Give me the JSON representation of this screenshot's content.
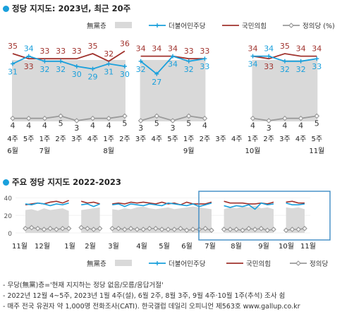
{
  "top_title": "정당 지지도: 2023년, 최근 20주",
  "bottom_title": "주요 정당 지지도 2022-2023",
  "legend": {
    "items": [
      {
        "label": "無黨층",
        "color": "#d9d9d9",
        "kind": "area"
      },
      {
        "label": "더불어민주당",
        "color": "#1aa0dc",
        "kind": "plus"
      },
      {
        "label": "국민의힘",
        "color": "#a0322d",
        "kind": "line"
      },
      {
        "label": "정의당 (%)",
        "color": "#9a9a9a",
        "kind": "diamond"
      }
    ],
    "bottom_items": [
      {
        "label": "無黨층",
        "color": "#d9d9d9",
        "kind": "area"
      },
      {
        "label": "더불어민주당",
        "color": "#1aa0dc",
        "kind": "plus"
      },
      {
        "label": "국민의힘",
        "color": "#a0322d",
        "kind": "line"
      },
      {
        "label": "정의당",
        "color": "#9a9a9a",
        "kind": "diamond"
      }
    ]
  },
  "notes": [
    "- 무당(無黨)층='현재 지지하는 정당 없음/모름/응답거절'",
    "- 2022년 12월 4~5주, 2023년 1월 4주(설), 6월 2주, 8월 3주, 9월 4주·10월 1주(추석) 조사 쉼",
    "- 매주 전국 유권자 약 1,000명 전화조사(CATI). 한국갤럽 데일리 오피니언 제563호 www.gallup.co.kr"
  ],
  "colors": {
    "dem": "#1aa0dc",
    "ppp": "#a0322d",
    "justice": "#9a9a9a",
    "nonparty": "#d9d9d9"
  },
  "chart_data": [
    {
      "type": "line",
      "title": "정당 지지도: 2023년, 최근 20주",
      "weeks": [
        "4주",
        "5주",
        "1주",
        "2주",
        "3주",
        "4주",
        "1주",
        "2주",
        "3주",
        "4주",
        "5주",
        "1주",
        "2주",
        "3주",
        "4주",
        "1주",
        "2주",
        "3주",
        "4주",
        "5주"
      ],
      "months": [
        "6월",
        "7월",
        "8월",
        "9월",
        "10월",
        "11월"
      ],
      "segments": [
        [
          0,
          7
        ],
        [
          8,
          12
        ],
        [
          15,
          19
        ]
      ],
      "series": [
        {
          "name": "더불어민주당",
          "values": [
            31,
            34,
            32,
            32,
            30,
            29,
            31,
            30,
            32,
            27,
            34,
            32,
            33,
            null,
            null,
            34,
            34,
            32,
            32,
            33
          ]
        },
        {
          "name": "국민의힘",
          "values": [
            35,
            33,
            33,
            33,
            33,
            35,
            32,
            36,
            34,
            34,
            34,
            33,
            33,
            null,
            null,
            34,
            33,
            35,
            34,
            34
          ]
        },
        {
          "name": "정의당",
          "values": [
            4,
            4,
            4,
            5,
            3,
            4,
            4,
            5,
            3,
            5,
            3,
            5,
            4,
            null,
            null,
            4,
            3,
            4,
            4,
            5
          ]
        }
      ],
      "nonparty": true
    },
    {
      "type": "line",
      "title": "주요 정당 지지도 2022-2023",
      "months": [
        "11월",
        "12월",
        "1월",
        "2월",
        "3월",
        "4월",
        "5월",
        "6월",
        "7월",
        "8월",
        "9월",
        "10월",
        "11월"
      ],
      "ylim": [
        0,
        45
      ],
      "yticks": [
        0,
        20,
        40
      ],
      "series": [
        {
          "name": "더불어민주당",
          "values": [
            33,
            32,
            34,
            33,
            31,
            33,
            32,
            34,
            33,
            32,
            33,
            30,
            33,
            31,
            32,
            33,
            30,
            33,
            32,
            31,
            33,
            32,
            31,
            34,
            33,
            32,
            31,
            33,
            30,
            32,
            34,
            33,
            31,
            29,
            31,
            30,
            32,
            27,
            34,
            32,
            33,
            34,
            34,
            32,
            32,
            33
          ]
        },
        {
          "name": "국민의힘",
          "values": [
            32,
            33,
            34,
            33,
            35,
            36,
            34,
            37,
            38,
            36,
            34,
            35,
            33,
            32,
            33,
            34,
            33,
            35,
            34,
            35,
            34,
            33,
            35,
            33,
            34,
            32,
            35,
            33,
            33,
            33,
            35,
            32,
            36,
            34,
            34,
            34,
            33,
            33,
            34,
            33,
            35,
            34,
            35,
            36,
            34,
            34
          ]
        },
        {
          "name": "정의당",
          "values": [
            5,
            6,
            5,
            4,
            5,
            4,
            5,
            5,
            4,
            6,
            5,
            4,
            5,
            4,
            5,
            5,
            4,
            5,
            4,
            4,
            5,
            5,
            4,
            4,
            4,
            5,
            3,
            4,
            4,
            5,
            3,
            5,
            4,
            4,
            4,
            3,
            5,
            4,
            5,
            3,
            4,
            4,
            3,
            4,
            4,
            5
          ]
        },
        {
          "name": "無黨층",
          "values": [
            26,
            27,
            25,
            28,
            26,
            27,
            28,
            25,
            24,
            26,
            27,
            28,
            29,
            28,
            27,
            26,
            28,
            27,
            29,
            30,
            28,
            27,
            28,
            29,
            27,
            28,
            29,
            30,
            29,
            28,
            27,
            26,
            27,
            29,
            28,
            30,
            29,
            31,
            28,
            29,
            27,
            28,
            29,
            28,
            29,
            27
          ]
        }
      ]
    }
  ]
}
